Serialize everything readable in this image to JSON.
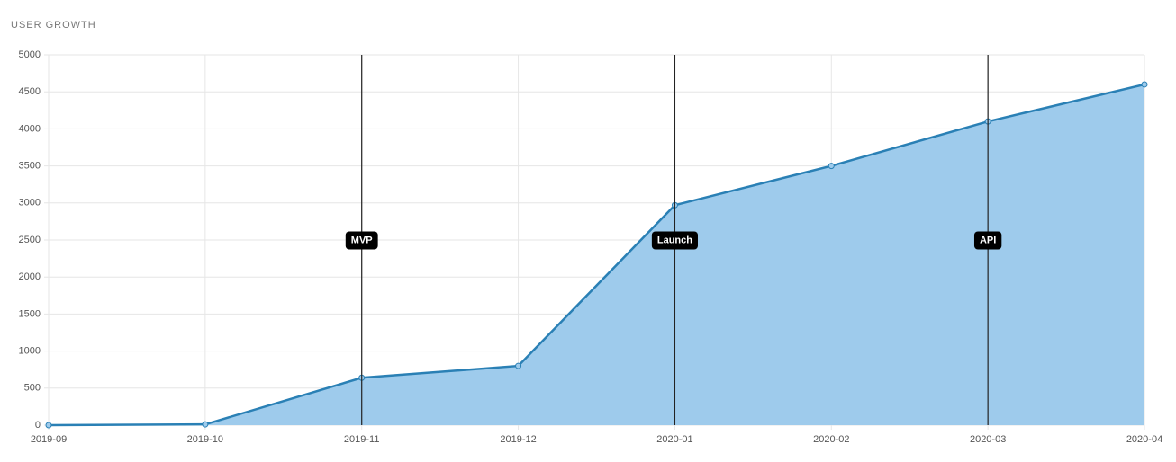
{
  "chart_data": {
    "type": "area",
    "title": "USER GROWTH",
    "categories": [
      "2019-09",
      "2019-10",
      "2019-11",
      "2019-12",
      "2020-01",
      "2020-02",
      "2020-03",
      "2020-04"
    ],
    "values": [
      0,
      10,
      640,
      800,
      2970,
      3500,
      4100,
      4600
    ],
    "color": "#2a80b5",
    "fill_color": "#9ecbec",
    "ylim": [
      0,
      5000
    ],
    "yticks": [
      0,
      500,
      1000,
      1500,
      2000,
      2500,
      3000,
      3500,
      4000,
      4500,
      5000
    ],
    "grid": true,
    "annotations": [
      {
        "x": "2019-11",
        "label": "MVP"
      },
      {
        "x": "2020-01",
        "label": "Launch"
      },
      {
        "x": "2020-03",
        "label": "API"
      }
    ]
  }
}
